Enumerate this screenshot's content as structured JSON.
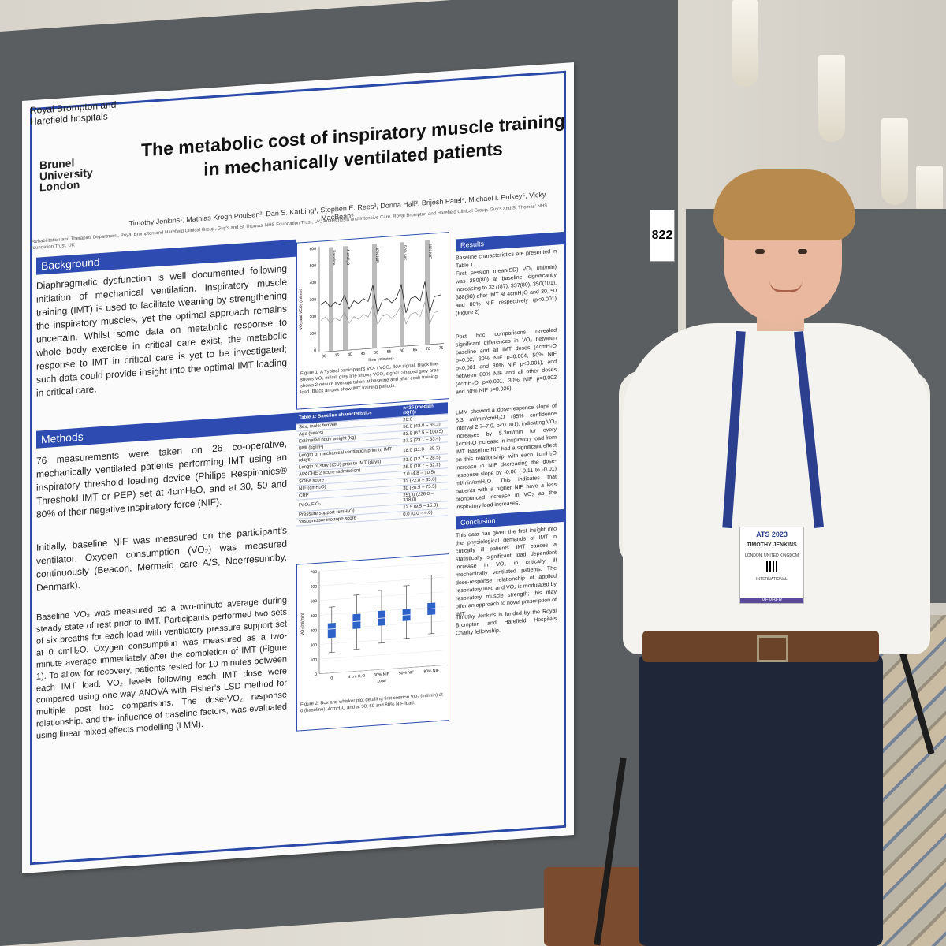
{
  "poster": {
    "institution_top": "Royal Brompton and Harefield hospitals",
    "brunel": "Brunel University London",
    "title": "The metabolic cost of inspiratory muscle training in mechanically ventilated patients",
    "authors": "Timothy Jenkins¹, Mathias Krogh Poulsen², Dan S. Karbing³, Stephen E. Rees³, Donna Hall³, Brijesh Patel⁴, Michael I. Polkey⁵, Vicky MacBean⁵",
    "affiliations": "¹Rehabilitation and Therapies Department, Royal Brompton and Harefield Clinical Group, Guy's and St Thomas' NHS Foundation Trust, UK; Anaesthesia and Intensive Care, Royal Brompton and Harefield Clinical Group, Guy's and St Thomas' NHS Foundation Trust, UK",
    "background_head": "Background",
    "background_text": "Diaphragmatic dysfunction is well documented following initiation of mechanical ventilation. Inspiratory muscle training (IMT) is used to facilitate weaning by strengthening the inspiratory muscles, yet the optimal approach remains uncertain. Whilst some data on metabolic response to whole body exercise in critical care exist, the metabolic response to IMT in critical care is yet to be investigated; such data could provide insight into the optimal IMT loading in critical care.",
    "methods_head": "Methods",
    "methods_text_1": "76 measurements were taken on 26 co-operative, mechanically ventilated patients performing IMT using an inspiratory threshold loading device (Philips Respironics® Threshold IMT or PEP) set at 4cmH₂O, and at 30, 50 and 80% of their negative inspiratory force (NIF).",
    "methods_text_2": "Initially, baseline NIF was measured on the participant's ventilator. Oxygen consumption (VO₂) was measured continuously (Beacon, Mermaid care A/S, Noerresundby, Denmark).",
    "methods_text_3": "Baseline VO₂ was measured as a two-minute average during steady state of rest prior to IMT. Participants performed two sets of six breaths for each load with ventilatory pressure support set at 0 cmH₂O. Oxygen consumption was measured as a two-minute average immediately after the completion of IMT (Figure 1). To allow for recovery, patients rested for 10 minutes between each IMT load. VO₂ levels following each IMT dose were compared using one-way ANOVA with Fisher's LSD method for multiple post hoc comparisons. The dose-VO₂ response relationship, and the influence of baseline factors, was evaluated using linear mixed effects modelling (LMM).",
    "results_head": "Results",
    "results_text_1": "Baseline characteristics are presented in Table 1.",
    "results_text_2": "First session mean(SD) VO₂ (ml/min) was 280(80) at baseline, significantly increasing to 327(87), 337(89), 350(101), 388(98) after IMT at 4cmH₂O and 30, 50 and 80% NIF respectively (p<0.001) (Figure 2)",
    "results_text_3": "Post hoc comparisons revealed significant differences in VO₂ between baseline and all IMT doses (4cmH₂O p=0.02, 30% NIF p=0.004, 50% NIF p<0.001 and 80% NIF p<0.001), and between 80% NIF and all other doses (4cmH₂O p<0.001, 30% NIF p=0.002 and 50% NIF p=0.026).",
    "results_text_4": "LMM showed a dose-response slope of 5.3 ml/min/cmH₂O (95% confidence interval 2.7–7.9, p<0.001), indicating VO₂ increases by 5.3ml/min for every 1cmH₂O increase in inspiratory load from IMT. Baseline NIF had a significant effect on this relationship, with each 1cmH₂O increase in NIF decreasing the dose-response slope by -0.06 (-0.11 to -0.01) ml/min/cmH₂O. This indicates that patients with a higher NIF have a less pronounced increase in VO₂ as the inspiratory load increases.",
    "conclusion_head": "Conclusion",
    "conclusion_text": "This data has given the first insight into the physiological demands of IMT in critically ill patients. IMT causes a statistically significant load dependent increase in VO₂ in critically ill mechanically ventilated patients. The dose-response relationship of applied respiratory load and VO₂ is modulated by respiratory muscle strength; this may offer an approach to novel prescription of IMT.",
    "funding": "Timothy Jenkins is funded by the Royal Brompton and Harefield Hospitals Charity fellowship.",
    "fig1_caption": "Figure 1: A Typical participant's VO₂ / VCO₂ flow signal. Black line shows VO₂ ml/ml, grey line shows VCO₂ signal. Shaded grey area shows 2-minute average taken at baseline and after each training load. Black arrows show IMT training periods.",
    "fig1_ylabel": "VO₂ and VCO₂ (ml/min)",
    "fig1_xlabel": "Time (minutes)",
    "fig1_markers": [
      "Baseline",
      "4 cmH₂O",
      "30% NIF",
      "50% NIF",
      "80% NIF"
    ],
    "fig1_yticks": [
      "600",
      "500",
      "400",
      "300",
      "200",
      "100",
      "0"
    ],
    "fig1_xticks": [
      "30",
      "35",
      "40",
      "45",
      "50",
      "55",
      "60",
      "65",
      "70",
      "75"
    ],
    "table_head_left": "Table 1: Baseline characteristics",
    "table_head_right": "n=26 (median (IQR))",
    "table_rows": [
      [
        "Sex, male: female",
        "20:6"
      ],
      [
        "Age (years)",
        "56.0 (43.0 – 65.3)"
      ],
      [
        "Estimated body weight (kg)",
        "83.5 (67.5 – 100.5)"
      ],
      [
        "BMI (kg/m²)",
        "27.3 (23.1 – 33.4)"
      ],
      [
        "Length of mechanical ventilation prior to IMT (days)",
        "18.0 (11.8 – 25.2)"
      ],
      [
        "Length of stay (ICU) prior to IMT (days)",
        "21.0 (12.7 – 28.5)"
      ],
      [
        "APACHE 2 score (admission)",
        "25.5 (18.7 – 32.2)"
      ],
      [
        "SOFA score",
        "7.0 (4.8 – 10.5)"
      ],
      [
        "NIF (cmH₂O)",
        "32 (22.8 – 35.8)"
      ],
      [
        "CRP",
        "30 (20.5 – 75.5)"
      ],
      [
        "PaO₂/FiO₂",
        "251.0 (226.0 – 318.0)"
      ],
      [
        "Pressure support (cmH₂O)",
        "12.5 (9.5 – 15.0)"
      ],
      [
        "Vasopressor inotrope score",
        "0.0 (0.0 – 4.0)"
      ]
    ],
    "fig2_caption": "Figure 2: Box and whisker plot detailing first session VO₂ (ml/min) at 0 (baseline), 4cmH₂O and at 30, 50 and 80% NIF load.",
    "fig2_ylabel": "VO₂ (ml/min)",
    "fig2_yticks": [
      "700",
      "600",
      "500",
      "400",
      "300",
      "200",
      "100",
      "0"
    ],
    "fig2_xlabel": "Load",
    "fig2_categories": [
      "0",
      "4 cm H₂O",
      "30% NIF",
      "50% NIF",
      "80% NIF"
    ],
    "booth_number": "822"
  },
  "badge": {
    "event": "ATS 2023",
    "name": "TIMOTHY JENKINS",
    "location": "LONDON, UNITED KINGDOM",
    "type": "INTERNATIONAL",
    "member": "MEMBER"
  },
  "chart_data": {
    "type": "box",
    "categories": [
      "0",
      "4 cm H₂O",
      "30% NIF",
      "50% NIF",
      "80% NIF"
    ],
    "ylim": [
      0,
      700
    ],
    "boxes": [
      {
        "min": 140,
        "q1": 240,
        "median": 300,
        "q3": 340,
        "max": 450
      },
      {
        "min": 150,
        "q1": 290,
        "median": 340,
        "q3": 390,
        "max": 520
      },
      {
        "min": 180,
        "q1": 300,
        "median": 350,
        "q3": 400,
        "max": 540
      },
      {
        "min": 200,
        "q1": 320,
        "median": 360,
        "q3": 400,
        "max": 560
      },
      {
        "min": 220,
        "q1": 350,
        "median": 390,
        "q3": 430,
        "max": 620
      }
    ],
    "ylabel": "VO₂ (ml/min)",
    "xlabel": "Load"
  },
  "colors": {
    "header_blue": "#2d4bb0",
    "lanyard": "#2c3f8f"
  }
}
